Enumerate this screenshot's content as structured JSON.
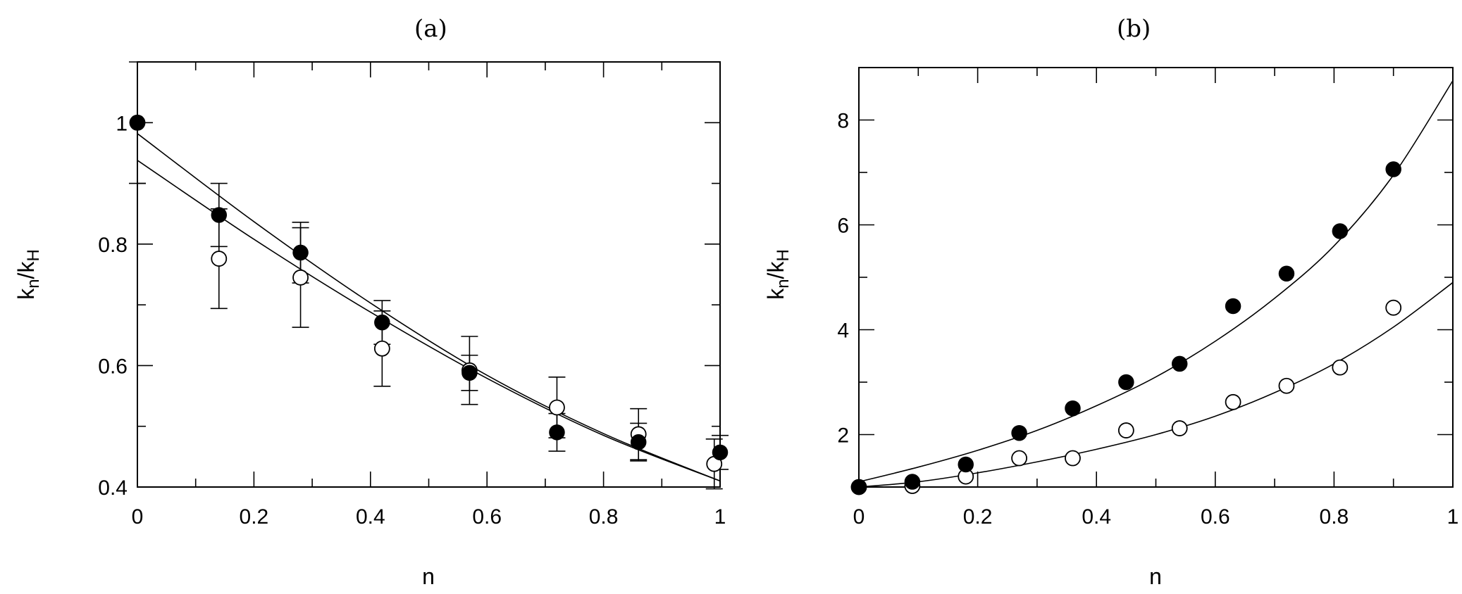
{
  "chart_data": [
    {
      "type": "scatter",
      "panel_label": "(a)",
      "xlabel": "n",
      "ylabel_main": "k",
      "ylabel_sub1": "n",
      "ylabel_mid": "/k",
      "ylabel_sub2": "H",
      "xlim": [
        0,
        1
      ],
      "ylim": [
        0.4,
        1.1
      ],
      "xticks": [
        0,
        0.2,
        0.4,
        0.6,
        0.8,
        1
      ],
      "xtick_labels": [
        "0",
        "0.2",
        "0.4",
        "0.6",
        "0.8",
        "1"
      ],
      "yticks": [
        0.4,
        0.6,
        0.8,
        1
      ],
      "ytick_labels": [
        "0.4",
        "0.6",
        "0.8",
        "1"
      ],
      "series": [
        {
          "marker": "filled",
          "x": [
            0,
            0.14,
            0.28,
            0.42,
            0.57,
            0.72,
            0.86,
            1.0
          ],
          "y": [
            1.0,
            0.848,
            0.786,
            0.671,
            0.588,
            0.49,
            0.474,
            0.457
          ],
          "err_low": [
            0.1,
            0.052,
            0.05,
            0.036,
            0.029,
            0.031,
            0.031,
            0.028
          ],
          "err_high": [
            0.1,
            0.052,
            0.05,
            0.036,
            0.029,
            0.031,
            0.031,
            0.028
          ]
        },
        {
          "marker": "open",
          "x": [
            0,
            0.14,
            0.28,
            0.42,
            0.57,
            0.72,
            0.86,
            0.99
          ],
          "y": [
            1.0,
            0.776,
            0.745,
            0.628,
            0.592,
            0.531,
            0.487,
            0.438
          ],
          "err_low": [
            0,
            0.082,
            0.082,
            0.062,
            0.056,
            0.05,
            0.042,
            0.041
          ],
          "err_high": [
            0,
            0.082,
            0.082,
            0.062,
            0.056,
            0.05,
            0.042,
            0.041
          ]
        }
      ],
      "fits": [
        {
          "x": [
            0,
            0.2,
            0.4,
            0.6,
            0.8,
            1.0
          ],
          "y": [
            0.982,
            0.837,
            0.703,
            0.584,
            0.488,
            0.41
          ]
        },
        {
          "x": [
            0,
            0.2,
            0.4,
            0.6,
            0.8,
            1.0
          ],
          "y": [
            0.938,
            0.808,
            0.688,
            0.579,
            0.485,
            0.41
          ]
        }
      ]
    },
    {
      "type": "scatter",
      "panel_label": "(b)",
      "xlabel": "n",
      "ylabel_main": "k",
      "ylabel_sub1": "n",
      "ylabel_mid": "/k",
      "ylabel_sub2": "H",
      "xlim": [
        0,
        1
      ],
      "ylim": [
        1,
        9
      ],
      "xticks": [
        0,
        0.2,
        0.4,
        0.6,
        0.8,
        1
      ],
      "xtick_labels": [
        "0",
        "0.2",
        "0.4",
        "0.6",
        "0.8",
        "1"
      ],
      "yticks": [
        2,
        4,
        6,
        8
      ],
      "ytick_labels": [
        "2",
        "4",
        "6",
        "8"
      ],
      "series": [
        {
          "marker": "filled",
          "x": [
            0,
            0.09,
            0.18,
            0.27,
            0.36,
            0.45,
            0.54,
            0.63,
            0.72,
            0.81,
            0.9
          ],
          "y": [
            1.0,
            1.1,
            1.43,
            2.03,
            2.5,
            3.0,
            3.35,
            4.45,
            5.07,
            5.88,
            7.06
          ]
        },
        {
          "marker": "open",
          "x": [
            0,
            0.09,
            0.18,
            0.27,
            0.36,
            0.45,
            0.54,
            0.63,
            0.72,
            0.81,
            0.9
          ],
          "y": [
            1.0,
            1.02,
            1.2,
            1.55,
            1.55,
            2.08,
            2.12,
            2.62,
            2.93,
            3.28,
            4.42
          ]
        }
      ],
      "fits": [
        {
          "x": [
            0,
            0.1,
            0.2,
            0.3,
            0.4,
            0.5,
            0.6,
            0.7,
            0.8,
            0.9,
            1.0
          ],
          "y": [
            1.1,
            1.38,
            1.7,
            2.08,
            2.55,
            3.1,
            3.78,
            4.6,
            5.6,
            6.95,
            8.75
          ]
        },
        {
          "x": [
            0,
            0.1,
            0.2,
            0.3,
            0.4,
            0.5,
            0.6,
            0.7,
            0.8,
            0.9,
            1.0
          ],
          "y": [
            1.0,
            1.1,
            1.27,
            1.48,
            1.72,
            2.0,
            2.35,
            2.8,
            3.35,
            4.05,
            4.9
          ]
        }
      ]
    }
  ]
}
